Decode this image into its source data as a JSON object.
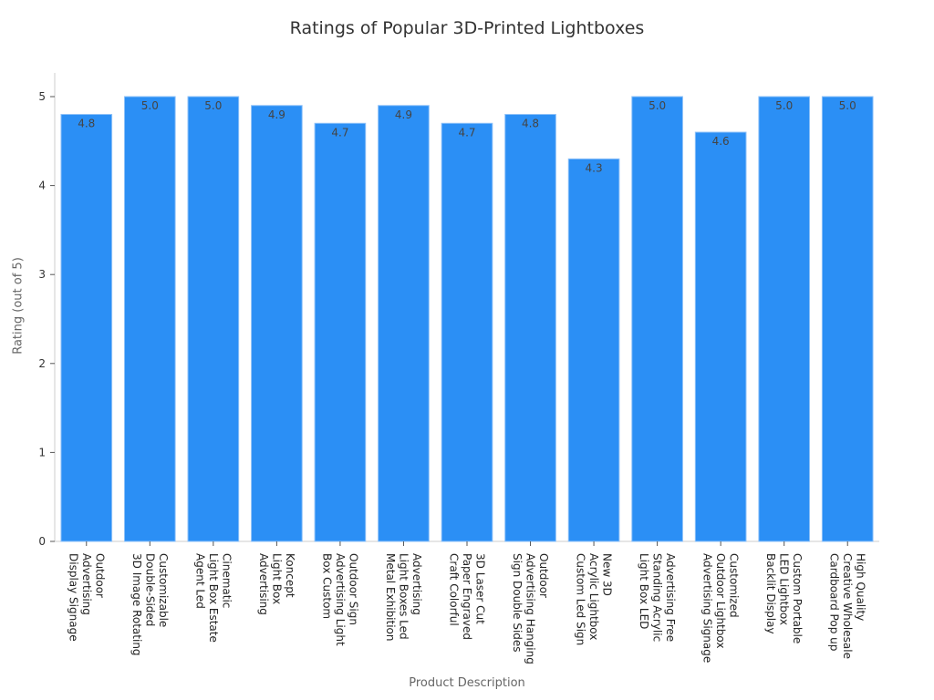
{
  "chart_data": {
    "type": "bar",
    "title": "Ratings of Popular 3D-Printed Lightboxes",
    "xlabel": "Product Description",
    "ylabel": "Rating (out of 5)",
    "ylim": [
      0,
      5.25
    ],
    "yticks": [
      0,
      1,
      2,
      3,
      4,
      5
    ],
    "grid": false,
    "bar_color": "#2b8ff5",
    "categories": [
      "Outdoor\nAdvertising\nDisplay Signage",
      "Customizable\nDouble-Sided\n3D Image Rotating",
      "Cinematic\nLight Box Estate\nAgent Led",
      "Koncept\nLight Box\nAdvertising",
      "Outdoor Sign\nAdvertising Light\nBox Custom",
      "Advertising\nLight Boxes Led\nMetal Exhibition",
      "3D Laser Cut\nPaper Engraved\nCraft Colorful",
      "Outdoor\nAdvertising Hanging\nSign Double Sides",
      "New 3D\nAcrylic Lightbox\nCustom Led Sign",
      "Advertising Free\nStanding Acrylic\nLight Box LED",
      "Customized\nOutdoor Lightbox\nAdvertising Signage",
      "Custom Portable\nLED Lightbox\nBacklit Display",
      "High Quality\nCreative Wholesale\nCardboard Pop up"
    ],
    "values": [
      4.8,
      5.0,
      5.0,
      4.9,
      4.7,
      4.9,
      4.7,
      4.8,
      4.3,
      5.0,
      4.6,
      5.0,
      5.0
    ],
    "data_labels": [
      "4.8",
      "5.0",
      "5.0",
      "4.9",
      "4.7",
      "4.9",
      "4.7",
      "4.8",
      "4.3",
      "5.0",
      "4.6",
      "5.0",
      "5.0"
    ]
  }
}
